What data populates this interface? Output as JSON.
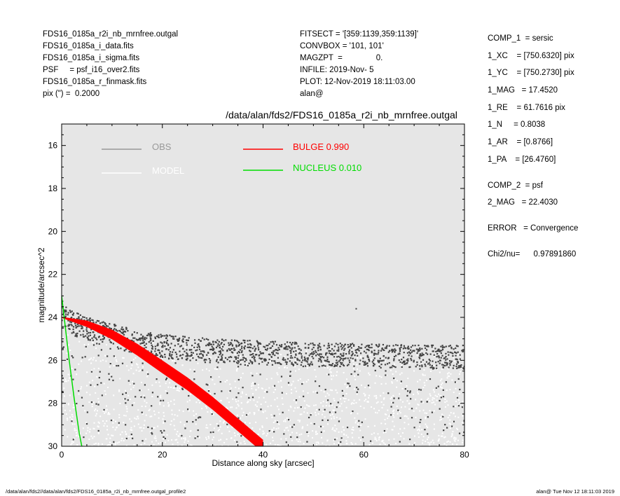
{
  "header_left": [
    "FDS16_0185a_r2i_nb_mrnfree.outgal",
    "FDS16_0185a_i_data.fits",
    "FDS16_0185a_i_sigma.fits",
    "PSF     = psf_i16_over2.fits",
    "FDS16_0185a_r_finmask.fits",
    "pix (\") =  0.2000"
  ],
  "header_mid": [
    "FITSECT = '[359:1139,359:1139]'",
    "CONVBOX = '101, 101'",
    "MAGZPT  =               0.",
    "INFILE: 2019-Nov- 5",
    "PLOT: 12-Nov-2019 18:11:03.00",
    "alan@"
  ],
  "side_params": [
    {
      "text": "COMP_1  = sersic"
    },
    {
      "text": "1_XC    = [750.6320] pix"
    },
    {
      "text": "1_YC    = [750.2730] pix"
    },
    {
      "text": "1_MAG   = 17.4520"
    },
    {
      "text": "1_RE    = 61.7616 pix"
    },
    {
      "text": "1_N     = 0.8038"
    },
    {
      "text": "1_AR    = [0.8766]"
    },
    {
      "text": "1_PA    = [26.4760]"
    },
    {
      "text": ""
    },
    {
      "text": "COMP_2  = psf"
    },
    {
      "text": "2_MAG   = 22.4030"
    },
    {
      "text": ""
    },
    {
      "text": "ERROR   = Convergence"
    },
    {
      "text": ""
    },
    {
      "text": "Chi2/nu=      0.97891860"
    }
  ],
  "footer": {
    "left": "/data/alan/fds2//data/alan/fds2/FDS16_0185a_r2i_nb_mrnfree.outgal_profile2",
    "right": "alan@  Tue Nov 12 18:11:03 2019"
  },
  "colors": {
    "plot_bg": "#e6e6e6",
    "obs": "#444444",
    "model": "#ffffff",
    "bulge": "#ff0000",
    "nucleus": "#00dd00",
    "legend_obs": "#999999"
  },
  "chart_data": {
    "type": "scatter",
    "title": "/data/alan/fds2/FDS16_0185a_r2i_nb_mrnfree.outgal",
    "xlabel": "Distance along sky [arcsec]",
    "ylabel": "magnitude/arcsec^2",
    "xlim": [
      0,
      80
    ],
    "ylim": [
      30,
      15
    ],
    "y_inverted": true,
    "xticks": [
      0,
      20,
      40,
      60,
      80
    ],
    "yticks": [
      16,
      18,
      20,
      22,
      24,
      26,
      28,
      30
    ],
    "legend": [
      {
        "label": "OBS",
        "color": "#999999"
      },
      {
        "label": "MODEL",
        "color": "#ffffff"
      },
      {
        "label": "BULGE  0.990",
        "color": "#ff0000"
      },
      {
        "label": "NUCLEUS  0.010",
        "color": "#00dd00"
      }
    ],
    "series": [
      {
        "name": "OBS",
        "description_points": "upper envelope of observed pixels",
        "x": [
          0,
          2,
          5,
          10,
          15,
          20,
          30,
          40,
          50,
          60,
          70,
          80
        ],
        "y": [
          23.2,
          23.7,
          24.0,
          24.3,
          24.6,
          24.8,
          25.0,
          25.1,
          25.2,
          25.2,
          25.3,
          25.3
        ]
      },
      {
        "name": "BULGE  0.990",
        "x": [
          0,
          5,
          10,
          15,
          20,
          25,
          30,
          35,
          40
        ],
        "y": [
          24.0,
          24.3,
          24.8,
          25.5,
          26.3,
          27.1,
          28.0,
          29.0,
          30.0
        ],
        "band_width_mag": [
          0.05,
          0.3,
          0.45,
          0.55,
          0.6,
          0.6,
          0.6,
          0.6,
          0.6
        ]
      },
      {
        "name": "NUCLEUS  0.010",
        "x": [
          0,
          0.5,
          1,
          1.5,
          2,
          2.5,
          3,
          3.5,
          4
        ],
        "y": [
          23.0,
          24.0,
          25.0,
          26.0,
          26.9,
          27.8,
          28.6,
          29.4,
          30.0
        ]
      },
      {
        "name": "MODEL",
        "x": [
          0,
          10,
          20,
          30,
          40,
          50,
          60,
          70,
          80
        ],
        "y": [
          24.0,
          24.8,
          25.2,
          25.3,
          25.4,
          25.5,
          25.5,
          25.6,
          25.6
        ]
      }
    ]
  }
}
